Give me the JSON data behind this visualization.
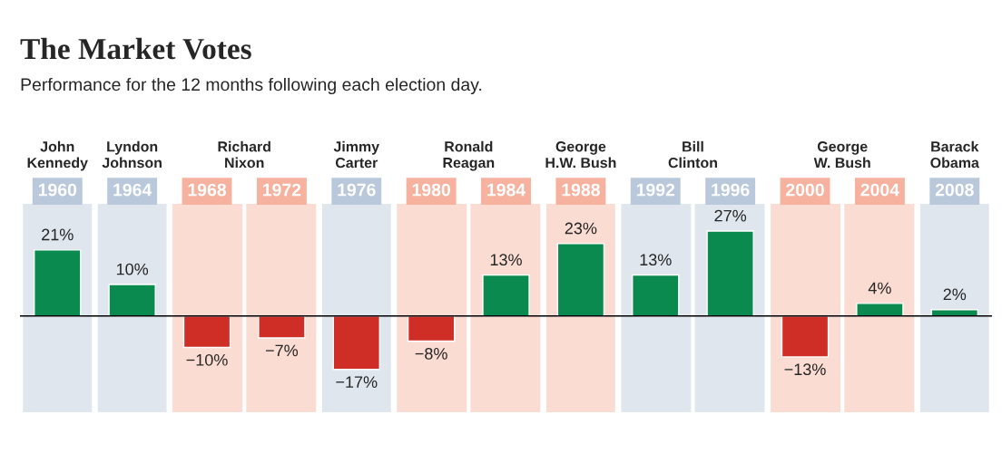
{
  "chart_data": {
    "type": "bar",
    "title": "The Market Votes",
    "subtitle": "Performance for the 12 months following each election day.",
    "categories": [
      "1960",
      "1964",
      "1968",
      "1972",
      "1976",
      "1980",
      "1984",
      "1988",
      "1992",
      "1996",
      "2000",
      "2004",
      "2008"
    ],
    "values": [
      21,
      10,
      -10,
      -7,
      -17,
      -8,
      13,
      23,
      13,
      27,
      -13,
      4,
      2
    ],
    "colors": [
      "#0b8a50",
      "#0b8a50",
      "#cf2e26",
      "#cf2e26",
      "#cf2e26",
      "#cf2e26",
      "#0b8a50",
      "#0b8a50",
      "#0b8a50",
      "#0b8a50",
      "#cf2e26",
      "#0b8a50",
      "#0b8a50"
    ],
    "value_labels": [
      "21%",
      "10%",
      "−10%",
      "−7%",
      "−17%",
      "−8%",
      "13%",
      "23%",
      "13%",
      "27%",
      "−13%",
      "4%",
      "2%"
    ],
    "annotations": [
      "John\nKennedy",
      "Lyndon\nJohnson",
      "Richard\nNixon",
      "Jimmy\nCarter",
      "Ronald\nReagan",
      "George\nH.W. Bush",
      "Bill\nClinton",
      "George\nW. Bush",
      "Barack\nObama"
    ],
    "bands": [
      {
        "axis": "x",
        "from": "1960",
        "to": "1960",
        "color": "#dfe6ee"
      },
      {
        "axis": "x",
        "from": "1964",
        "to": "1964",
        "color": "#dfe6ee"
      },
      {
        "axis": "x",
        "from": "1968",
        "to": "1972",
        "color": "#fbdcd3"
      },
      {
        "axis": "x",
        "from": "1976",
        "to": "1976",
        "color": "#dfe6ee"
      },
      {
        "axis": "x",
        "from": "1980",
        "to": "1984",
        "color": "#fbdcd3"
      },
      {
        "axis": "x",
        "from": "1988",
        "to": "1988",
        "color": "#fbdcd3"
      },
      {
        "axis": "x",
        "from": "1992",
        "to": "1996",
        "color": "#dfe6ee"
      },
      {
        "axis": "x",
        "from": "2000",
        "to": "2004",
        "color": "#fbdcd3"
      },
      {
        "axis": "x",
        "from": "2008",
        "to": "2008",
        "color": "#dfe6ee"
      }
    ]
  }
}
